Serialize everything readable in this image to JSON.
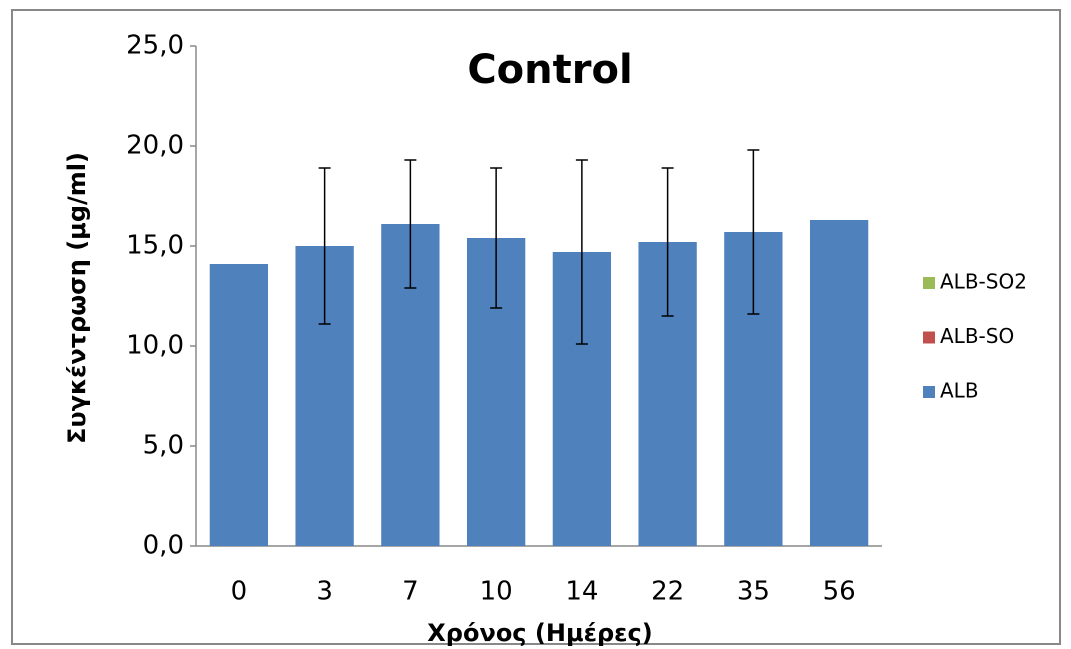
{
  "chart_data": {
    "type": "stacked_bar",
    "title": "Control",
    "x_label": "Χρόνος (Ημέρες)",
    "y_label": "Συγκέντρωση (μg/ml)",
    "categories": [
      "0",
      "3",
      "7",
      "10",
      "14",
      "22",
      "35",
      "56"
    ],
    "series": [
      {
        "name": "ALB",
        "color": "#4f81bd",
        "values": [
          14.1,
          15.0,
          16.1,
          15.4,
          14.7,
          15.2,
          15.7,
          16.3
        ],
        "errors": [
          null,
          3.9,
          3.2,
          3.5,
          4.6,
          3.7,
          4.1,
          null
        ]
      },
      {
        "name": "ALB-SO",
        "color": "#c0504d",
        "values": [
          0,
          0,
          0,
          0,
          0,
          0,
          0,
          0
        ]
      },
      {
        "name": "ALB-SO2",
        "color": "#9bbb59",
        "values": [
          0,
          0,
          0,
          0,
          0,
          0,
          0,
          0
        ]
      }
    ],
    "ylim": [
      0,
      25
    ],
    "yticks": [
      {
        "value": 0,
        "label": "0,0"
      },
      {
        "value": 5,
        "label": "5,0"
      },
      {
        "value": 10,
        "label": "10,0"
      },
      {
        "value": 15,
        "label": "15,0"
      },
      {
        "value": 20,
        "label": "20,0"
      },
      {
        "value": 25,
        "label": "25,0"
      }
    ],
    "grid": false,
    "legend": "right"
  }
}
